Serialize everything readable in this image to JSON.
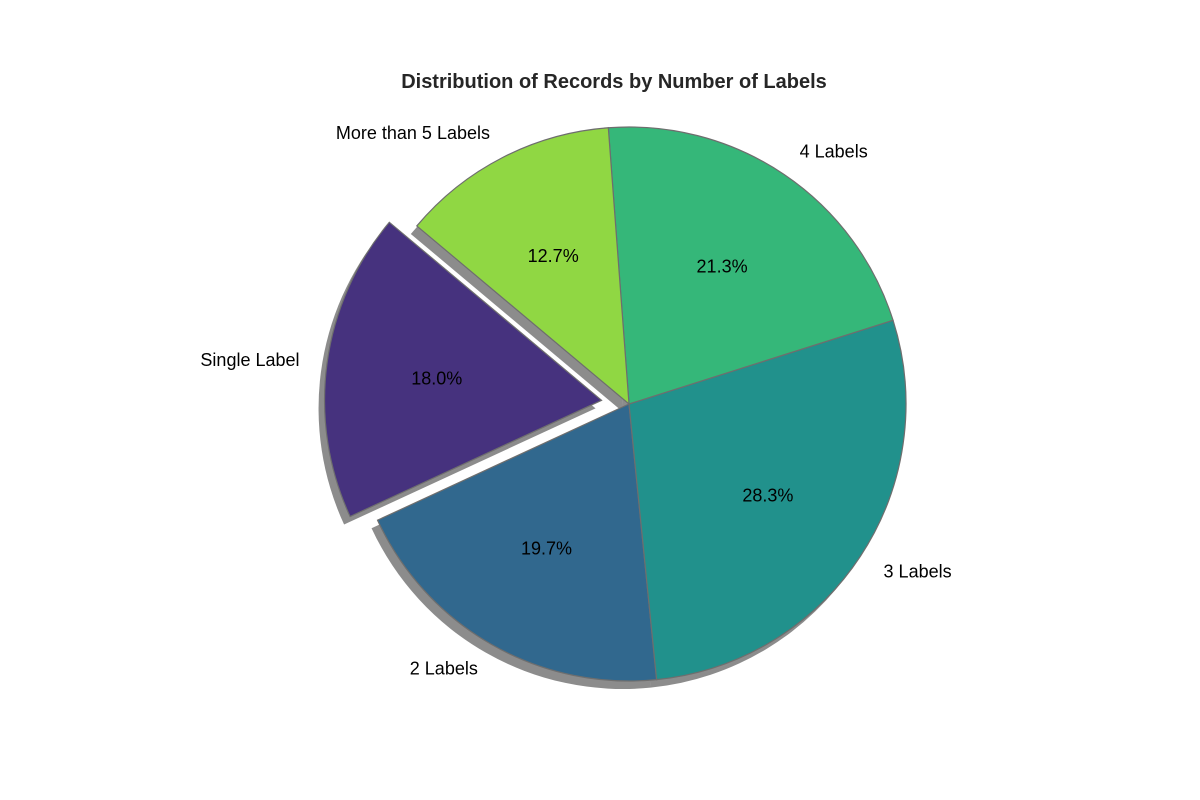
{
  "chart_data": {
    "type": "pie",
    "title": "Distribution of Records by Number of Labels",
    "categories": [
      "Single Label",
      "2 Labels",
      "3 Labels",
      "4 Labels",
      "More than 5 Labels"
    ],
    "values": [
      18.0,
      19.7,
      28.3,
      21.3,
      12.7
    ],
    "value_labels": [
      "18.0%",
      "19.7%",
      "28.3%",
      "21.3%",
      "12.7%"
    ],
    "colors": [
      "#46327e",
      "#31688e",
      "#21918c",
      "#35b779",
      "#90d743"
    ],
    "exploded": [
      "Single Label"
    ],
    "shadow": true,
    "start_angle_deg": 140,
    "direction": "counterclockwise"
  }
}
